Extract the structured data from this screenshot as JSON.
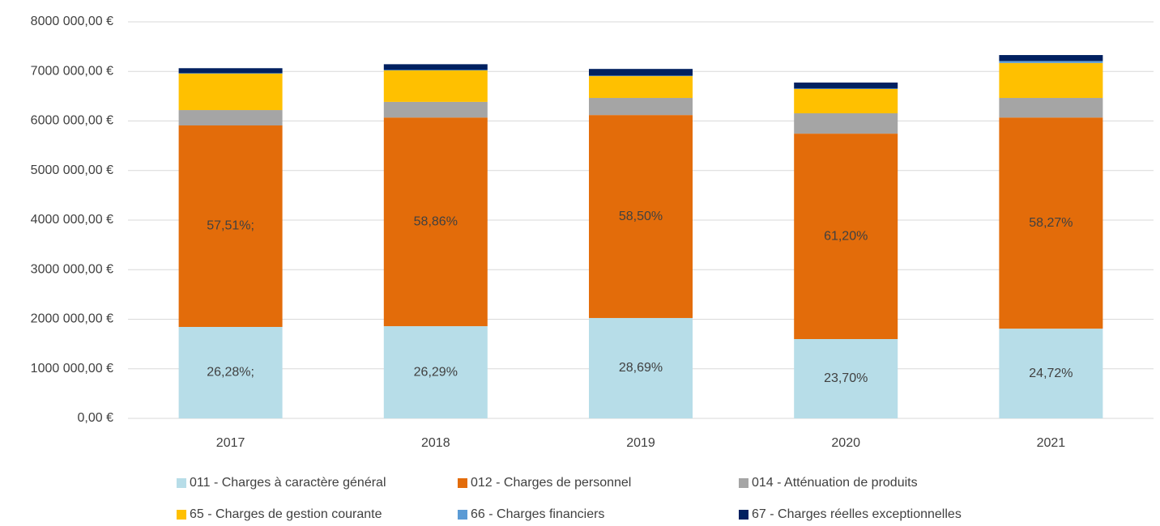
{
  "chart_data": {
    "type": "stacked_bar",
    "categories": [
      "2017",
      "2018",
      "2019",
      "2020",
      "2021"
    ],
    "series": [
      {
        "name": "011 - Charges à caractère général",
        "color": "#b7dde8",
        "values": [
          1845000,
          1860000,
          2025000,
          1600000,
          1810000
        ],
        "labels": [
          "26,28%;",
          "26,29%",
          "28,69%",
          "23,70%",
          "24,72%"
        ]
      },
      {
        "name": "012 - Charges de personnel",
        "color": "#e36c0a",
        "values": [
          4065000,
          4210000,
          4095000,
          4145000,
          4260000
        ],
        "labels": [
          "57,51%;",
          "58,86%",
          "58,50%",
          "61,20%",
          "58,27%"
        ]
      },
      {
        "name": "014 - Atténuation de produits",
        "color": "#a5a5a5",
        "values": [
          310000,
          315000,
          345000,
          410000,
          395000
        ]
      },
      {
        "name": "65 - Charges de gestion courante",
        "color": "#ffc000",
        "values": [
          735000,
          635000,
          440000,
          490000,
          705000
        ]
      },
      {
        "name": "66 - Charges financiers",
        "color": "#5b9bd5",
        "values": [
          10000,
          10000,
          10000,
          10000,
          40000
        ]
      },
      {
        "name": "67 - Charges réelles exceptionnelles",
        "color": "#002060",
        "values": [
          100000,
          115000,
          135000,
          120000,
          120000
        ]
      }
    ],
    "ylim": [
      0,
      8000000
    ],
    "yticks": [
      {
        "value": 0,
        "label": "0,00 €"
      },
      {
        "value": 1000000,
        "label": "1000 000,00 €"
      },
      {
        "value": 2000000,
        "label": "2000 000,00 €"
      },
      {
        "value": 3000000,
        "label": "3000 000,00 €"
      },
      {
        "value": 4000000,
        "label": "4000 000,00 €"
      },
      {
        "value": 5000000,
        "label": "5000 000,00 €"
      },
      {
        "value": 6000000,
        "label": "6000 000,00 €"
      },
      {
        "value": 7000000,
        "label": "7000 000,00 €"
      },
      {
        "value": 8000000,
        "label": "8000 000,00 €"
      }
    ],
    "grid": true,
    "legend": "bottom"
  }
}
